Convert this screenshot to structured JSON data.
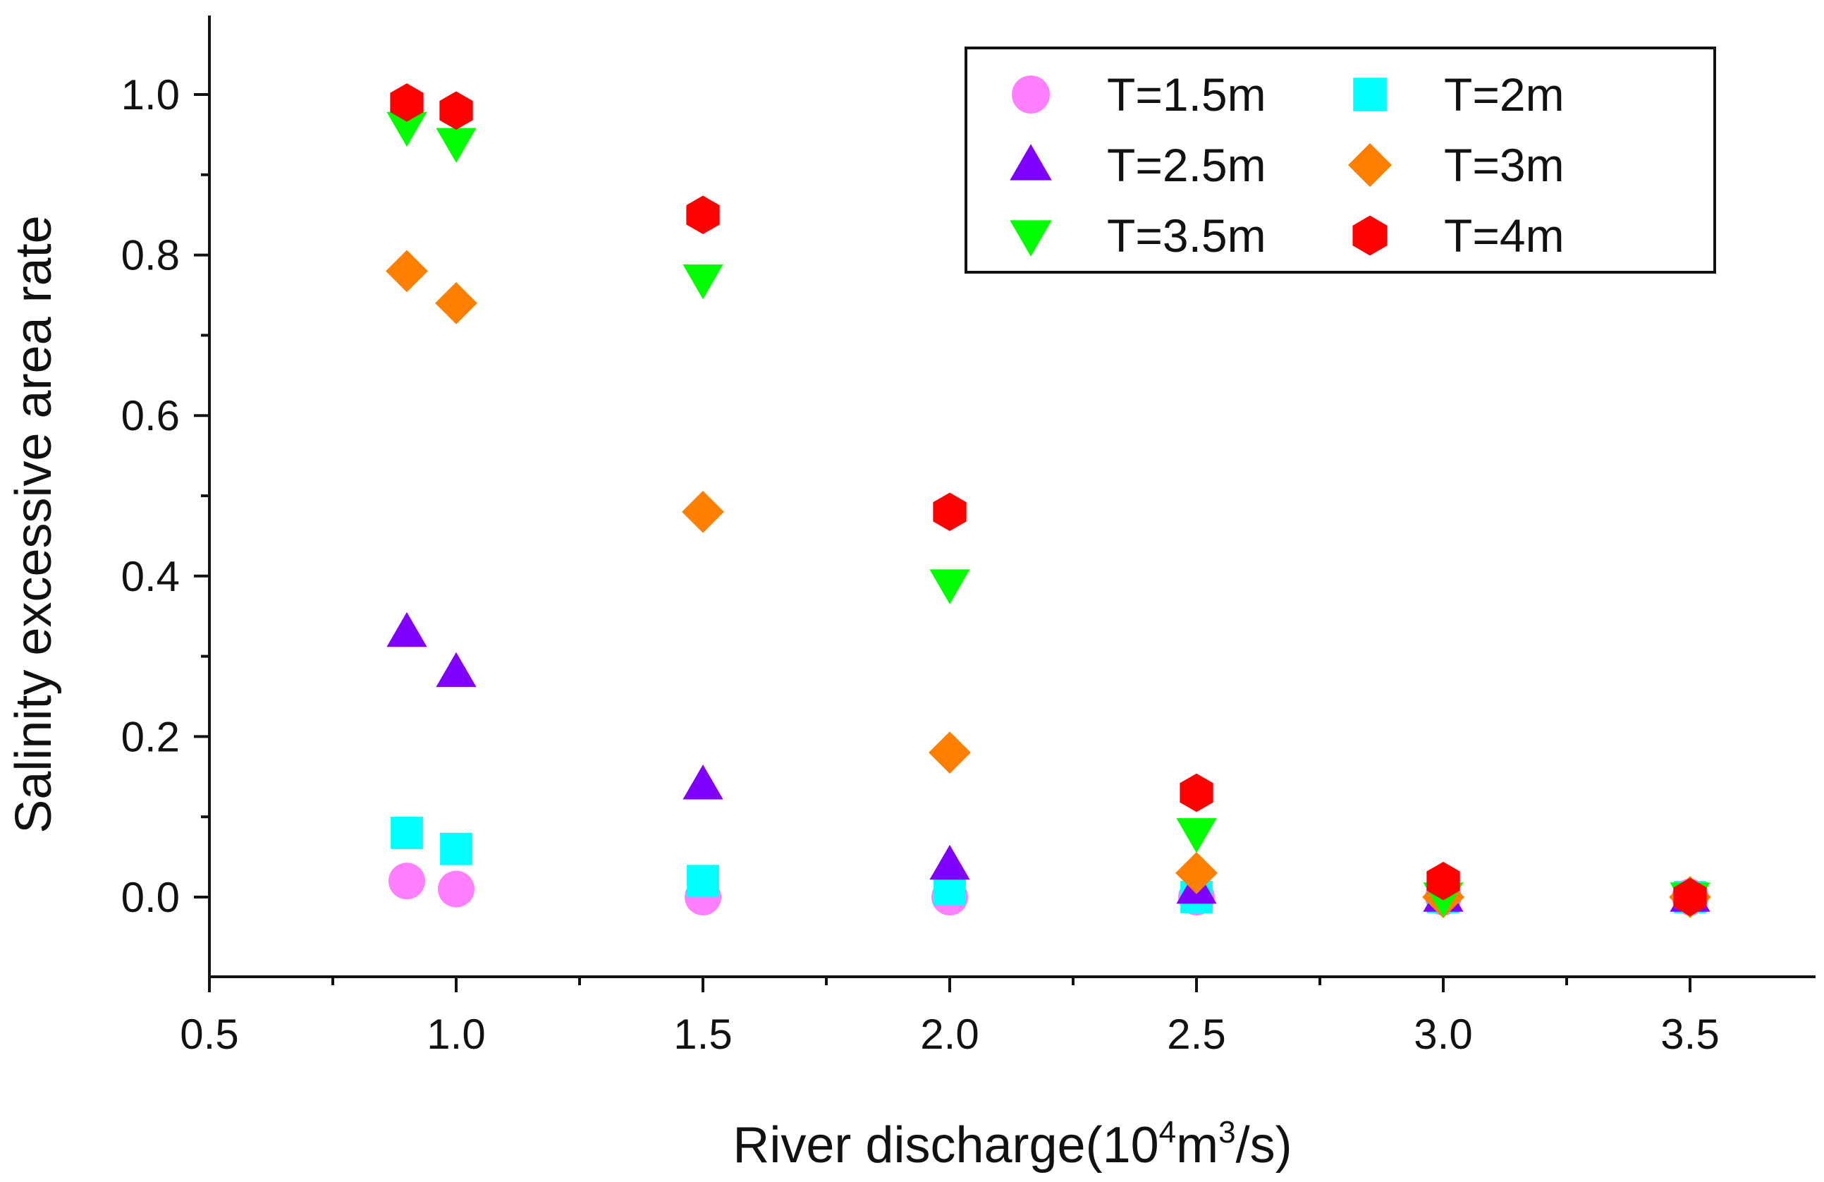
{
  "chart_data": {
    "type": "scatter",
    "title": "",
    "xlabel": "River discharge(10",
    "xlabel_sup1": "4",
    "xlabel_mid": "m",
    "xlabel_sup2": "3",
    "xlabel_end": "/s)",
    "ylabel": "Salinity excessive area rate",
    "xlim": [
      0.5,
      3.75
    ],
    "ylim": [
      -0.1,
      1.1
    ],
    "xticks": [
      0.5,
      1.0,
      1.5,
      2.0,
      2.5,
      3.0,
      3.5
    ],
    "xtick_labels": [
      "0.5",
      "1.0",
      "1.5",
      "2.0",
      "2.5",
      "3.0",
      "3.5"
    ],
    "yticks": [
      0.0,
      0.2,
      0.4,
      0.6,
      0.8,
      1.0
    ],
    "ytick_labels": [
      "0.0",
      "0.2",
      "0.4",
      "0.6",
      "0.8",
      "1.0"
    ],
    "grid": false,
    "legend_position": "top-right",
    "series": [
      {
        "name": "T=1.5m",
        "marker": "circle",
        "color": "#ff80ff",
        "x": [
          0.9,
          1.0,
          1.5,
          2.0,
          2.5,
          3.0,
          3.5
        ],
        "y": [
          0.02,
          0.01,
          0.0,
          0.0,
          0.0,
          0.0,
          0.0
        ]
      },
      {
        "name": "T=2m",
        "marker": "square",
        "color": "#00ffff",
        "x": [
          0.9,
          1.0,
          1.5,
          2.0,
          2.5,
          3.0,
          3.5
        ],
        "y": [
          0.08,
          0.06,
          0.02,
          0.01,
          0.0,
          0.0,
          0.0
        ]
      },
      {
        "name": "T=2.5m",
        "marker": "triangle-up",
        "color": "#8000ff",
        "x": [
          0.9,
          1.0,
          1.5,
          2.0,
          2.5,
          3.0,
          3.5
        ],
        "y": [
          0.33,
          0.28,
          0.14,
          0.04,
          0.01,
          0.0,
          0.0
        ]
      },
      {
        "name": "T=3m",
        "marker": "diamond",
        "color": "#ff8000",
        "x": [
          0.9,
          1.0,
          1.5,
          2.0,
          2.5,
          3.0,
          3.5
        ],
        "y": [
          0.78,
          0.74,
          0.48,
          0.18,
          0.03,
          0.0,
          0.0
        ]
      },
      {
        "name": "T=3.5m",
        "marker": "triangle-down",
        "color": "#00ff00",
        "x": [
          0.9,
          1.0,
          1.5,
          2.0,
          2.5,
          3.0,
          3.5
        ],
        "y": [
          0.96,
          0.94,
          0.77,
          0.39,
          0.08,
          0.0,
          0.0
        ]
      },
      {
        "name": "T=4m",
        "marker": "hexagon",
        "color": "#ff0000",
        "x": [
          0.9,
          1.0,
          1.5,
          2.0,
          2.5,
          3.0,
          3.5
        ],
        "y": [
          0.99,
          0.98,
          0.85,
          0.48,
          0.13,
          0.02,
          0.0
        ]
      }
    ]
  }
}
